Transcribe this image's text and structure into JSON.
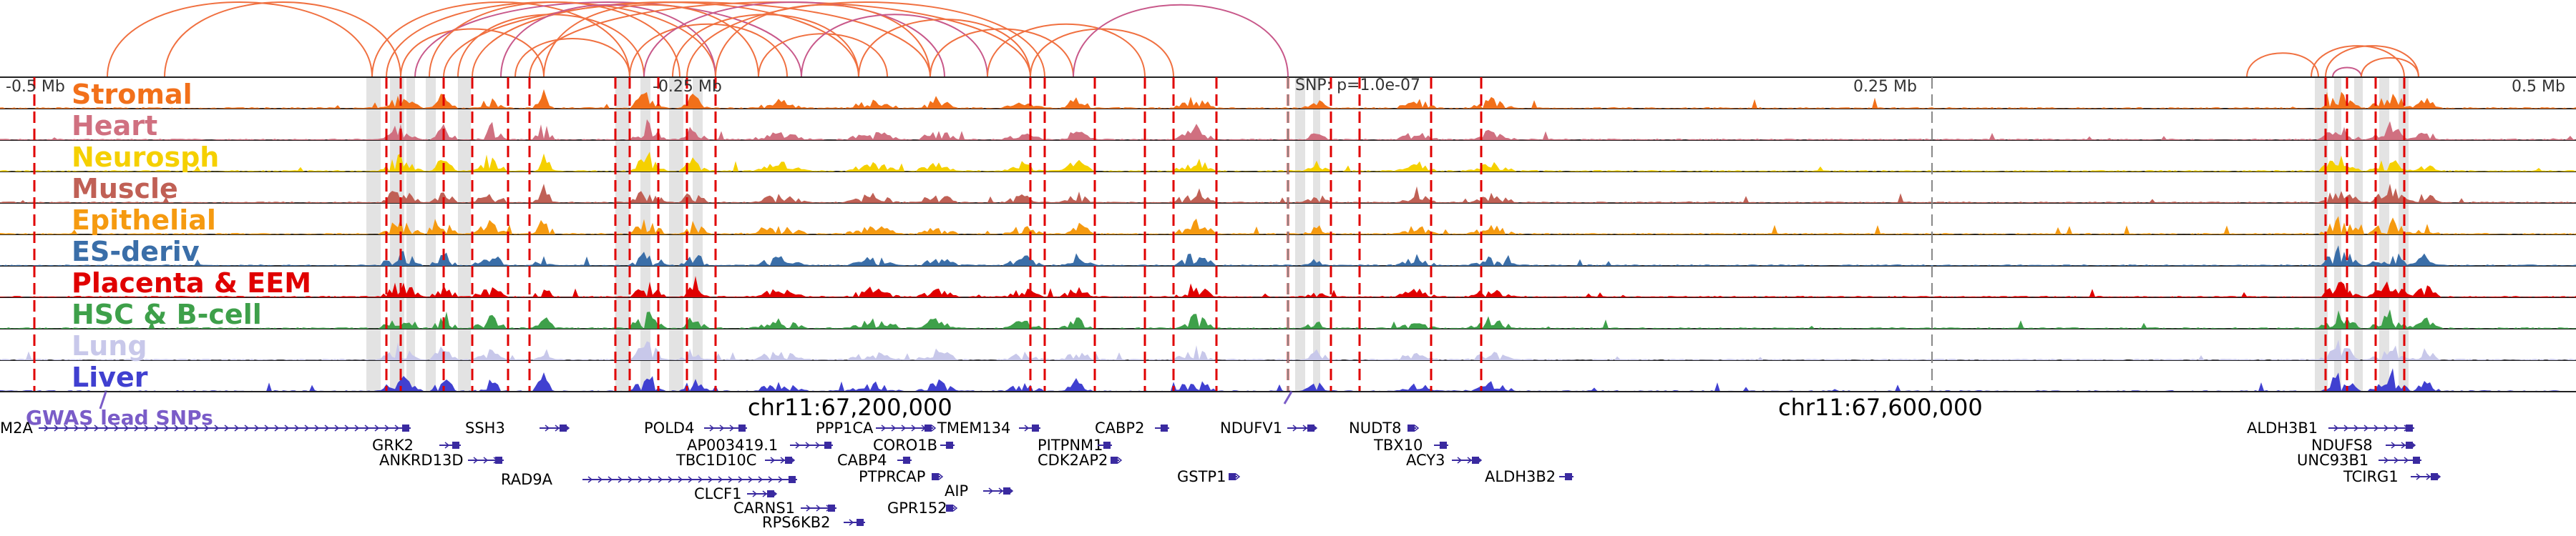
{
  "tracks": [
    {
      "name": "Stromal",
      "color": "#f2701a"
    },
    {
      "name": "Heart",
      "color": "#d07080"
    },
    {
      "name": "Neurosph",
      "color": "#f5d000"
    },
    {
      "name": "Muscle",
      "color": "#c06055"
    },
    {
      "name": "Epithelial",
      "color": "#f59a10"
    },
    {
      "name": "ES-deriv",
      "color": "#3a6ea8"
    },
    {
      "name": "Placenta & EEM",
      "color": "#e00000"
    },
    {
      "name": "HSC & B-cell",
      "color": "#3ea04a"
    },
    {
      "name": "Lung",
      "color": "#c8c8ea"
    },
    {
      "name": "Liver",
      "color": "#4040d0"
    }
  ],
  "scale": {
    "left_label": "-0.5 Mb",
    "left_mid_label": "-0.25 Mb",
    "snp_label": "SNP: p=1.0e-07",
    "right_mid_label": "0.25 Mb",
    "right_label": "0.5 Mb"
  },
  "coordinates": {
    "left": "chr11:67,200,000",
    "right": "chr11:67,600,000"
  },
  "snp_track": {
    "label": "GWAS lead SNPs",
    "color": "#7a5cc8"
  },
  "genes": [
    "M2A",
    "GRK2",
    "SSH3",
    "ANKRD13D",
    "RAD9A",
    "POLD4",
    "AP003419.1",
    "TBC1D10C",
    "CLCF1",
    "CARNS1",
    "RPS6KB2",
    "PPP1CA",
    "CORO1B",
    "CABP4",
    "PTPRCAP",
    "TMEM134",
    "PITPNM1",
    "CDK2AP2",
    "CABP2",
    "AIP",
    "GPR152",
    "NDUFV1",
    "GSTP1",
    "NUDT8",
    "TBX10",
    "ACY3",
    "ALDH3B2",
    "ALDH3B1",
    "NDUFS8",
    "UNC93B1",
    "TCIRG1"
  ],
  "colors": {
    "background": "#ffffff",
    "arcs": "#f07040",
    "arcs_alt": "#c8588a",
    "lines": "#e00000",
    "gene_strand": "#3a2aa0",
    "axis": "#000000"
  }
}
